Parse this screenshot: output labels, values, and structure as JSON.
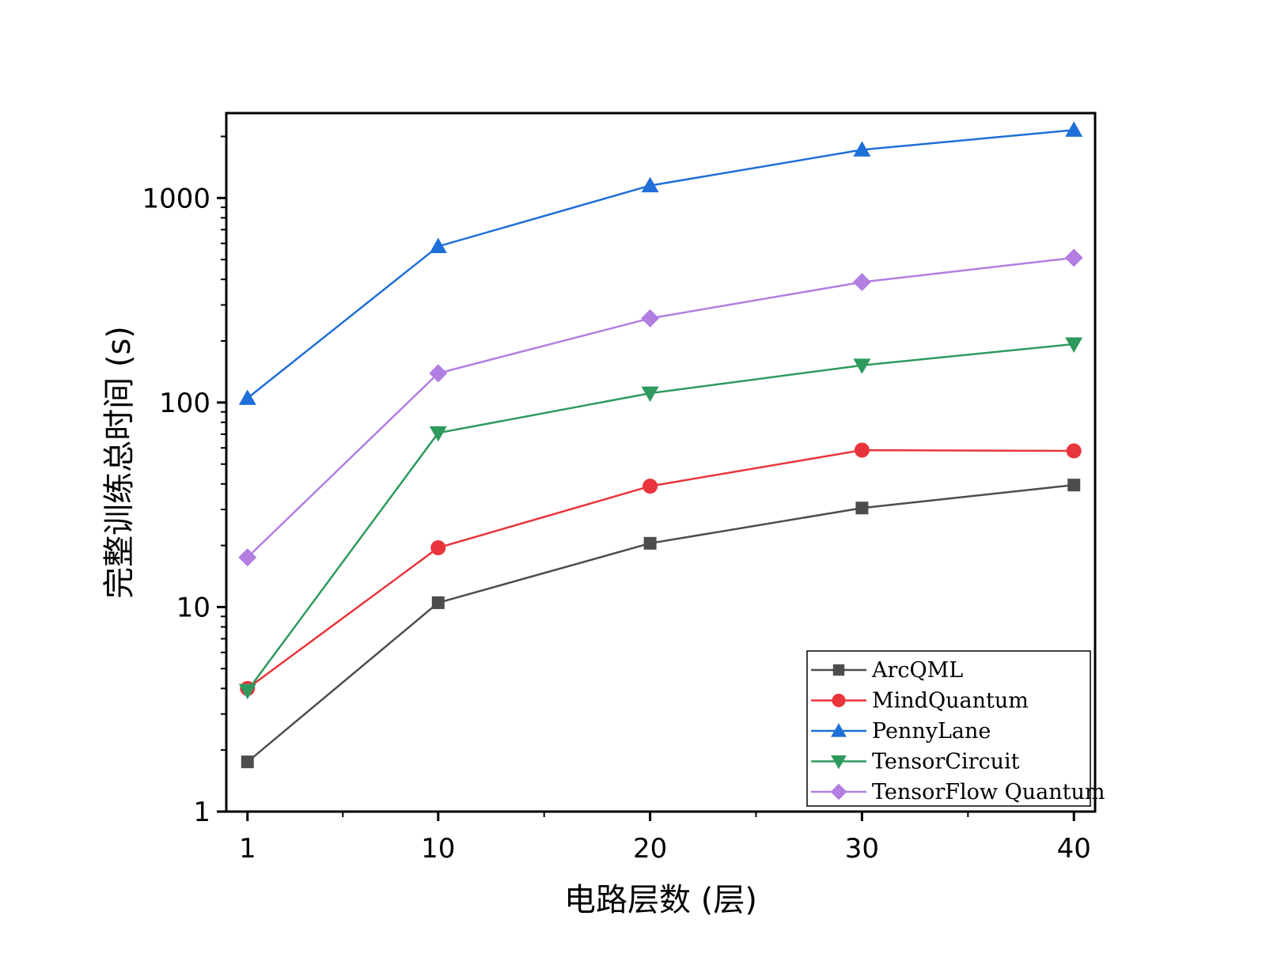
{
  "chart_data": {
    "type": "line",
    "xlabel": "电路层数 (层)",
    "ylabel": "完整训练总时间 (s)",
    "y_scale": "log",
    "xlim": [
      0,
      41
    ],
    "ylim": [
      1,
      2600
    ],
    "x_ticks": [
      1,
      10,
      20,
      30,
      40
    ],
    "y_ticks": [
      1,
      10,
      100,
      1000
    ],
    "x": [
      1,
      10,
      20,
      30,
      40
    ],
    "legend_position": "bottom-right",
    "series": [
      {
        "name": "ArcQML",
        "color": "#4d4d4d",
        "marker": "square",
        "values": [
          1.75,
          10.5,
          20.5,
          30.5,
          39.5
        ]
      },
      {
        "name": "MindQuantum",
        "color": "#e8353b",
        "marker": "circle",
        "values": [
          4.0,
          19.5,
          39.0,
          58.5,
          58.0
        ]
      },
      {
        "name": "PennyLane",
        "color": "#1f6fd8",
        "marker": "triangle-up",
        "values": [
          105,
          580,
          1150,
          1720,
          2150
        ]
      },
      {
        "name": "TensorCircuit",
        "color": "#2e9a5e",
        "marker": "triangle-down",
        "values": [
          3.9,
          71,
          111,
          152,
          193
        ]
      },
      {
        "name": "TensorFlow Quantum",
        "color": "#b27ee2",
        "marker": "diamond",
        "values": [
          17.5,
          139,
          258,
          388,
          510
        ]
      }
    ]
  }
}
